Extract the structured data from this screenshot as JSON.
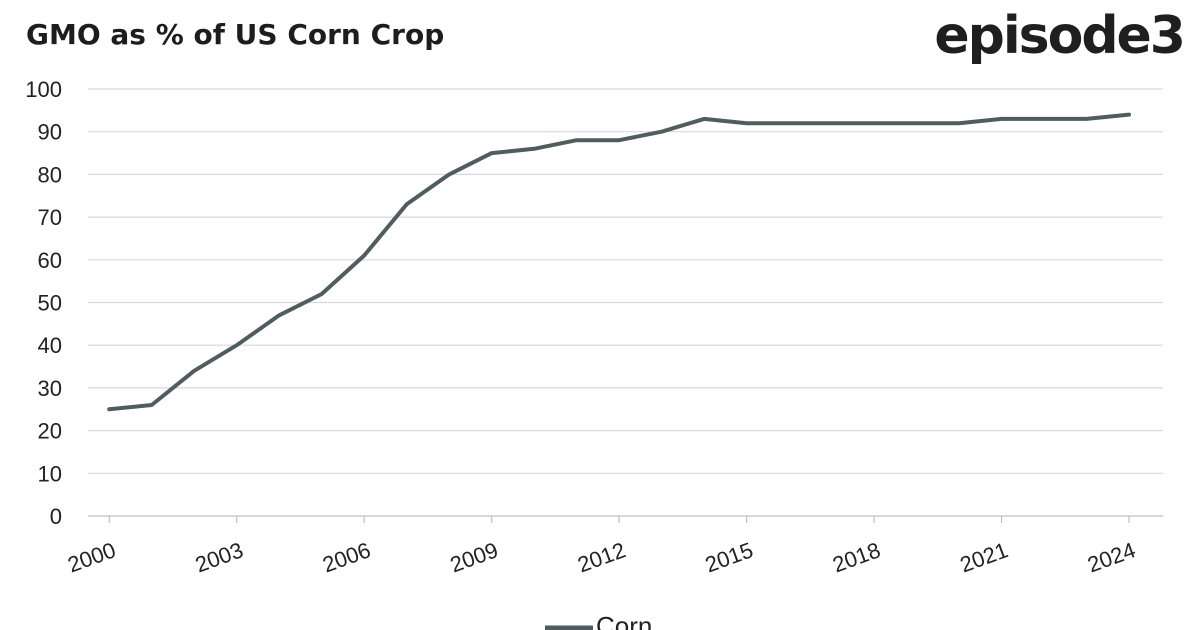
{
  "header": {
    "title": "GMO as % of US Corn Crop",
    "brand": "episode3"
  },
  "colors": {
    "series": "#4f5d60",
    "grid": "#d9d9d9",
    "axis": "#bfbfbf",
    "text": "#222222"
  },
  "chart_data": {
    "type": "line",
    "title": "GMO as % of US Corn Crop",
    "xlabel": "",
    "ylabel": "",
    "x": [
      2000,
      2001,
      2002,
      2003,
      2004,
      2005,
      2006,
      2007,
      2008,
      2009,
      2010,
      2011,
      2012,
      2013,
      2014,
      2015,
      2016,
      2017,
      2018,
      2019,
      2020,
      2021,
      2022,
      2023,
      2024
    ],
    "series": [
      {
        "name": "Corn",
        "values": [
          25,
          26,
          34,
          40,
          47,
          52,
          61,
          73,
          80,
          85,
          86,
          88,
          88,
          90,
          93,
          92,
          92,
          92,
          92,
          92,
          92,
          93,
          93,
          93,
          94
        ]
      }
    ],
    "y_ticks": [
      "0",
      "10",
      "20",
      "30",
      "40",
      "50",
      "60",
      "70",
      "80",
      "90",
      "100"
    ],
    "x_ticks": [
      "2000",
      "2003",
      "2006",
      "2009",
      "2012",
      "2015",
      "2018",
      "2021",
      "2024"
    ],
    "ylim": [
      0,
      100
    ],
    "grid": true,
    "legend": "bottom"
  }
}
